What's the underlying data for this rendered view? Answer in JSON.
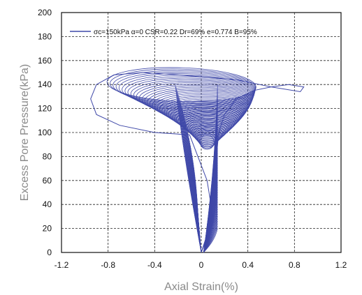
{
  "chart_data": {
    "type": "line",
    "title": "",
    "xlabel": "Axial Strain(%)",
    "ylabel": "Excess Pore Pressure(kPa)",
    "xlim": [
      -1.2,
      1.2
    ],
    "ylim": [
      0,
      200
    ],
    "grid": true,
    "xticks": [
      -1.2,
      -0.8,
      -0.4,
      0,
      0.4,
      0.8,
      1.2
    ],
    "xtick_labels": [
      "-1.2",
      "-0.8",
      "-0.4",
      "0",
      "0.4",
      "0.8",
      "1.2"
    ],
    "yticks": [
      0,
      20,
      40,
      60,
      80,
      100,
      120,
      140,
      160,
      180,
      200
    ],
    "ytick_labels": [
      "0",
      "20",
      "40",
      "60",
      "80",
      "100",
      "120",
      "140",
      "160",
      "180",
      "200"
    ],
    "legend_position": "top",
    "series": [
      {
        "name": "σc=150kPa  α=0  CSR=0.22  Dr=69%  e=0.774  B=95%",
        "color": "#3f48a8",
        "x": [
          0,
          0.05,
          0.1,
          0.12,
          0.12,
          0.13,
          0.15,
          0.2,
          0.3,
          0.45,
          0.6,
          0.75,
          0.88,
          0.85,
          0.6,
          0.3,
          0.05,
          -0.2,
          -0.5,
          -0.75,
          -0.9,
          -0.95,
          -0.9,
          -0.7,
          -0.4,
          -0.1,
          0.05,
          0.1,
          0.05,
          0
        ],
        "y": [
          0,
          12,
          25,
          40,
          60,
          80,
          100,
          115,
          128,
          135,
          138,
          140,
          138,
          134,
          138,
          144,
          146,
          148,
          150,
          148,
          140,
          128,
          115,
          106,
          100,
          98,
          60,
          30,
          15,
          0
        ]
      }
    ]
  }
}
